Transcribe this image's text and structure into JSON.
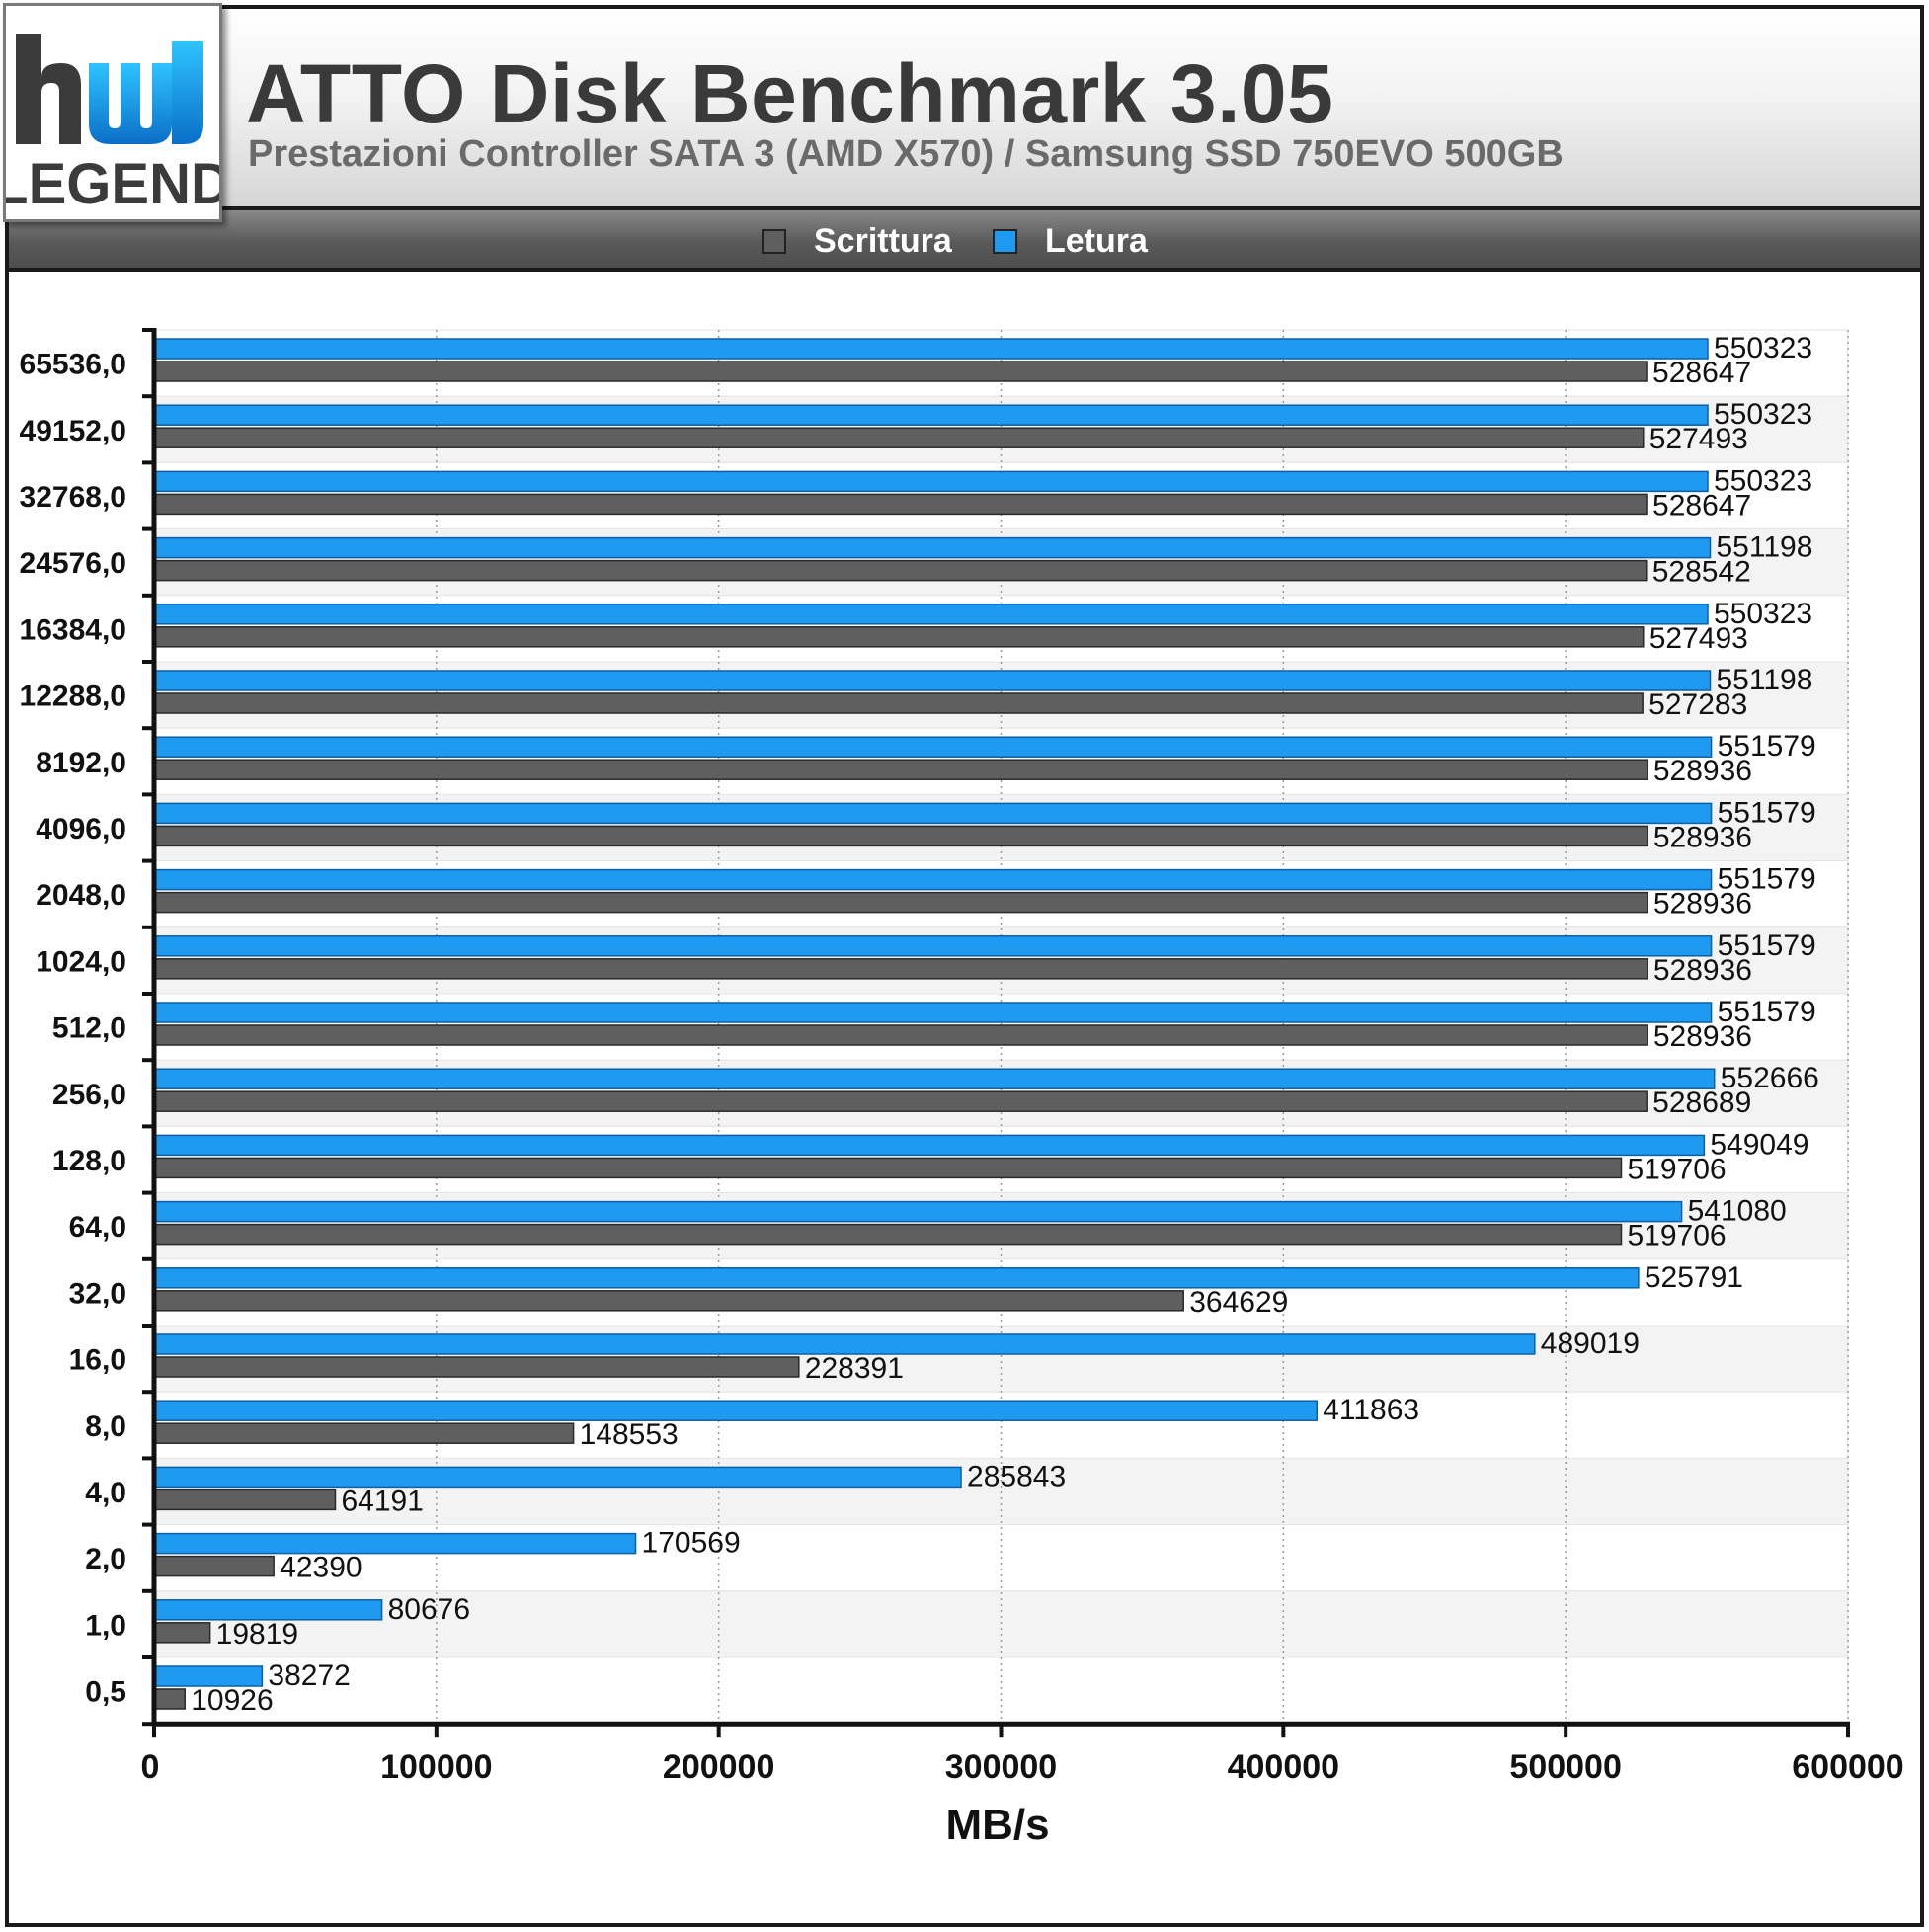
{
  "logo": {
    "text": "LEGEND"
  },
  "header": {
    "title": "ATTO Disk Benchmark 3.05",
    "subtitle": "Prestazioni Controller SATA 3 (AMD X570) / Samsung SSD 750EVO 500GB"
  },
  "legend": [
    {
      "label": "Scrittura",
      "color": "#5f5f5f"
    },
    {
      "label": "Letura",
      "color": "#1e9af0"
    }
  ],
  "chart_data": {
    "type": "bar",
    "orientation": "horizontal",
    "categories": [
      "65536,0",
      "49152,0",
      "32768,0",
      "24576,0",
      "16384,0",
      "12288,0",
      "8192,0",
      "4096,0",
      "2048,0",
      "1024,0",
      "512,0",
      "256,0",
      "128,0",
      "64,0",
      "32,0",
      "16,0",
      "8,0",
      "4,0",
      "2,0",
      "1,0",
      "0,5"
    ],
    "series": [
      {
        "name": "Letura",
        "color": "#1e9af0",
        "values": [
          550323,
          550323,
          550323,
          551198,
          550323,
          551198,
          551579,
          551579,
          551579,
          551579,
          551579,
          552666,
          549049,
          541080,
          525791,
          489019,
          411863,
          285843,
          170569,
          80676,
          38272
        ]
      },
      {
        "name": "Scrittura",
        "color": "#5f5f5f",
        "values": [
          528647,
          527493,
          528647,
          528542,
          527493,
          527283,
          528936,
          528936,
          528936,
          528936,
          528936,
          528689,
          519706,
          519706,
          364629,
          228391,
          148553,
          64191,
          42390,
          19819,
          10926
        ]
      }
    ],
    "xlabel": "MB/s",
    "xlim": [
      0,
      600000
    ],
    "xticks": [
      0,
      100000,
      200000,
      300000,
      400000,
      500000,
      600000
    ],
    "grid": "vertical dotted",
    "legend_position": "top"
  }
}
